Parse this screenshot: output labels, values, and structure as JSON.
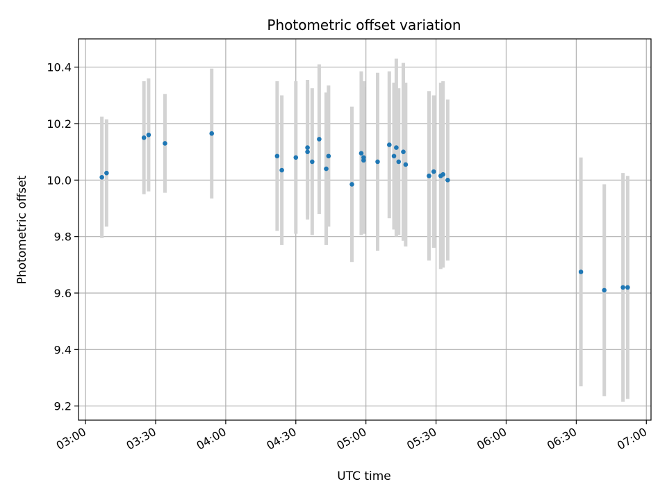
{
  "chart_data": {
    "type": "scatter",
    "title": "Photometric offset variation",
    "xlabel": "UTC time",
    "ylabel": "Photometric offset",
    "x_tick_labels": [
      "03:00",
      "03:30",
      "04:00",
      "04:30",
      "05:00",
      "05:30",
      "06:00",
      "06:30",
      "07:00"
    ],
    "y_tick_labels": [
      "9.2",
      "9.4",
      "9.6",
      "9.8",
      "10.0",
      "10.2",
      "10.4"
    ],
    "xlim": [
      "02:57",
      "07:02"
    ],
    "ylim": [
      9.15,
      10.5
    ],
    "grid": true,
    "marker_color": "#1f77b4",
    "errorbar_color": "#d3d3d3",
    "series": [
      {
        "points": [
          {
            "x": "03:07",
            "y": 10.01,
            "err": 0.215
          },
          {
            "x": "03:09",
            "y": 10.025,
            "err": 0.19
          },
          {
            "x": "03:25",
            "y": 10.15,
            "err": 0.2
          },
          {
            "x": "03:27",
            "y": 10.16,
            "err": 0.2
          },
          {
            "x": "03:34",
            "y": 10.13,
            "err": 0.175
          },
          {
            "x": "03:54",
            "y": 10.165,
            "err": 0.23
          },
          {
            "x": "04:22",
            "y": 10.085,
            "err": 0.265
          },
          {
            "x": "04:24",
            "y": 10.035,
            "err": 0.265
          },
          {
            "x": "04:30",
            "y": 10.08,
            "err": 0.27
          },
          {
            "x": "04:35",
            "y": 10.115,
            "err": 0.24
          },
          {
            "x": "04:35",
            "y": 10.1,
            "err": 0.24
          },
          {
            "x": "04:37",
            "y": 10.065,
            "err": 0.26
          },
          {
            "x": "04:40",
            "y": 10.145,
            "err": 0.265
          },
          {
            "x": "04:43",
            "y": 10.04,
            "err": 0.27
          },
          {
            "x": "04:44",
            "y": 10.085,
            "err": 0.25
          },
          {
            "x": "04:54",
            "y": 9.985,
            "err": 0.275
          },
          {
            "x": "04:58",
            "y": 10.095,
            "err": 0.29
          },
          {
            "x": "04:59",
            "y": 10.08,
            "err": 0.27
          },
          {
            "x": "04:59",
            "y": 10.07,
            "err": 0.26
          },
          {
            "x": "05:05",
            "y": 10.065,
            "err": 0.315
          },
          {
            "x": "05:10",
            "y": 10.125,
            "err": 0.26
          },
          {
            "x": "05:12",
            "y": 10.085,
            "err": 0.26
          },
          {
            "x": "05:13",
            "y": 10.115,
            "err": 0.315
          },
          {
            "x": "05:14",
            "y": 10.065,
            "err": 0.26
          },
          {
            "x": "05:16",
            "y": 10.1,
            "err": 0.315
          },
          {
            "x": "05:17",
            "y": 10.055,
            "err": 0.29
          },
          {
            "x": "05:27",
            "y": 10.015,
            "err": 0.3
          },
          {
            "x": "05:29",
            "y": 10.03,
            "err": 0.27
          },
          {
            "x": "05:32",
            "y": 10.015,
            "err": 0.33
          },
          {
            "x": "05:33",
            "y": 10.02,
            "err": 0.33
          },
          {
            "x": "05:35",
            "y": 10.0,
            "err": 0.285
          },
          {
            "x": "06:32",
            "y": 9.675,
            "err": 0.405
          },
          {
            "x": "06:42",
            "y": 9.61,
            "err": 0.375
          },
          {
            "x": "06:50",
            "y": 9.62,
            "err": 0.405
          },
          {
            "x": "06:52",
            "y": 9.62,
            "err": 0.395
          }
        ]
      }
    ]
  }
}
